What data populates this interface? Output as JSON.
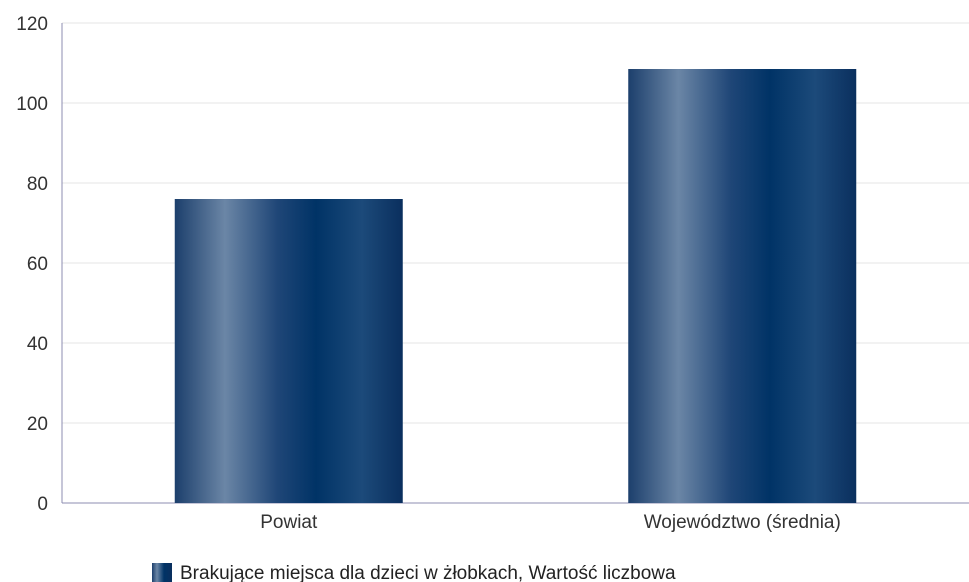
{
  "chart_data": {
    "type": "bar",
    "categories": [
      "Powiat",
      "Województwo (średnia)"
    ],
    "series": [
      {
        "name": "Brakujące miejsca dla dzieci w żłobkach, Wartość liczbowa",
        "values": [
          76,
          108.5
        ]
      }
    ],
    "ylim": [
      0,
      120
    ],
    "yticks": [
      0,
      20,
      40,
      60,
      80,
      100,
      120
    ],
    "grid": true,
    "legend_position": "bottom",
    "title": "",
    "xlabel": "",
    "ylabel": ""
  },
  "colors": {
    "bar_dark": "#003366",
    "bar_light": "#6b86a6",
    "grid": "#e6e6e6",
    "axis": "#8c8cb0"
  }
}
